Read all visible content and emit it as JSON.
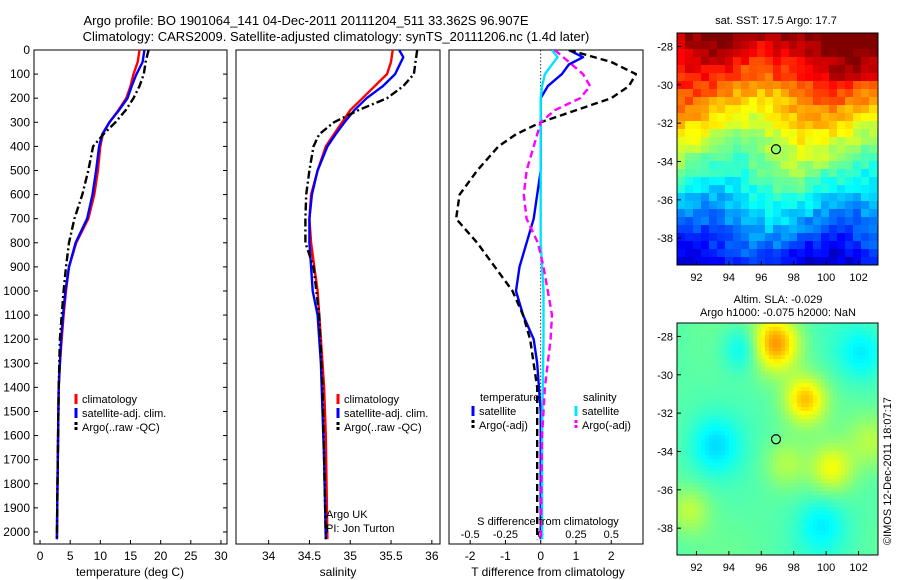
{
  "header": {
    "line1": "Argo profile: BO 1901064_141 04-Dec-2011 20111204_511 33.362S 96.907E",
    "line2": "Climatology: CARS2009. Satellite-adjusted climatology: synTS_20111206.nc (1.4d later)"
  },
  "colors": {
    "climatology": "#ff0000",
    "satellite": "#0000ff",
    "argo": "#000000",
    "satellite_salinity": "#00e5ff",
    "argo_salinity": "#ff00ff"
  },
  "depth_ticks": [
    "0",
    "100",
    "200",
    "300",
    "400",
    "500",
    "600",
    "700",
    "800",
    "900",
    "1000",
    "1100",
    "1200",
    "1300",
    "1400",
    "1500",
    "1600",
    "1700",
    "1800",
    "1900",
    "2000"
  ],
  "credit": [
    "Argo UK",
    "PI: Jon Turton"
  ],
  "watermark": "©IMOS 12-Dec-2011 18:07:17",
  "chart_data": [
    {
      "type": "line",
      "id": "temperature",
      "xlabel": "temperature (deg C)",
      "xlim": [
        -1,
        31
      ],
      "ylim": [
        2050,
        0
      ],
      "x_ticks": [
        "0",
        "5",
        "10",
        "15",
        "20",
        "25",
        "30"
      ],
      "legend": [
        "climatology",
        "satellite-adj. clim.",
        "Argo(..raw -QC)"
      ],
      "series": [
        {
          "name": "climatology",
          "style": "solid",
          "x": [
            16.5,
            16.2,
            15.5,
            15.0,
            14.3,
            13.0,
            11.5,
            10.4,
            10.0,
            9.6,
            9.0,
            8.0,
            6.0,
            4.8,
            4.3,
            3.9,
            3.6,
            3.3,
            3.1,
            3.0,
            2.9,
            2.8
          ],
          "y": [
            0,
            50,
            100,
            150,
            200,
            250,
            300,
            350,
            400,
            500,
            600,
            700,
            800,
            900,
            1000,
            1100,
            1200,
            1300,
            1400,
            1600,
            1800,
            2030
          ]
        },
        {
          "name": "satellite-adj. clim.",
          "style": "solid",
          "x": [
            17.3,
            17.0,
            16.0,
            15.2,
            14.5,
            13.1,
            11.5,
            10.3,
            9.8,
            9.3,
            8.7,
            7.8,
            5.9,
            4.8,
            4.2,
            3.8,
            3.5,
            3.3,
            3.1,
            3.0,
            2.9,
            2.8
          ],
          "y": [
            0,
            50,
            100,
            150,
            200,
            250,
            300,
            350,
            400,
            500,
            600,
            700,
            800,
            900,
            1000,
            1100,
            1200,
            1300,
            1400,
            1600,
            1800,
            2030
          ]
        },
        {
          "name": "Argo(..raw -QC)",
          "style": "dashdot",
          "x": [
            18.0,
            17.5,
            17.2,
            16.5,
            15.5,
            14.2,
            12.5,
            10.5,
            8.8,
            8.0,
            7.0,
            5.7,
            4.8,
            4.3,
            3.9,
            3.6,
            3.3,
            3.1,
            3.0,
            2.9,
            2.8
          ],
          "y": [
            0,
            50,
            100,
            150,
            200,
            250,
            300,
            350,
            400,
            500,
            600,
            700,
            800,
            900,
            1000,
            1100,
            1200,
            1400,
            1600,
            1800,
            2030
          ]
        }
      ]
    },
    {
      "type": "line",
      "id": "salinity",
      "xlabel": "salinity",
      "xlim": [
        33.6,
        36.1
      ],
      "ylim": [
        2050,
        0
      ],
      "x_ticks": [
        "34",
        "34.5",
        "35",
        "35.5",
        "36"
      ],
      "legend": [
        "climatology",
        "satellite-adj. clim.",
        "Argo(..raw -QC)"
      ],
      "series": [
        {
          "name": "climatology",
          "style": "solid",
          "x": [
            35.52,
            35.5,
            35.45,
            35.3,
            35.15,
            35.0,
            34.9,
            34.8,
            34.7,
            34.6,
            34.52,
            34.5,
            34.52,
            34.56,
            34.6,
            34.64,
            34.68,
            34.7,
            34.72
          ],
          "y": [
            0,
            50,
            100,
            150,
            200,
            250,
            300,
            350,
            400,
            500,
            600,
            700,
            800,
            900,
            1000,
            1200,
            1400,
            1600,
            2030
          ]
        },
        {
          "name": "satellite-adj. clim.",
          "style": "solid",
          "x": [
            35.6,
            35.65,
            35.55,
            35.4,
            35.2,
            35.05,
            34.93,
            34.82,
            34.72,
            34.6,
            34.53,
            34.5,
            34.5,
            34.52,
            34.54,
            34.6,
            34.64,
            34.66,
            34.68,
            34.7
          ],
          "y": [
            0,
            30,
            100,
            150,
            200,
            250,
            300,
            350,
            400,
            500,
            600,
            700,
            800,
            900,
            1000,
            1100,
            1300,
            1500,
            1700,
            2030
          ]
        },
        {
          "name": "Argo(..raw -QC)",
          "style": "dashdot",
          "x": [
            35.82,
            35.8,
            35.78,
            35.65,
            35.45,
            35.1,
            34.8,
            34.62,
            34.55,
            34.5,
            34.46,
            34.45,
            34.45,
            34.55,
            34.62,
            34.66,
            34.68,
            34.7
          ],
          "y": [
            0,
            50,
            100,
            150,
            200,
            250,
            300,
            350,
            400,
            500,
            600,
            700,
            800,
            900,
            1100,
            1400,
            1700,
            2030
          ]
        }
      ]
    },
    {
      "type": "line",
      "id": "difference",
      "xlabel": "T difference from climatology",
      "xlabel_top": "S difference from climatology",
      "xlim": [
        -2.6,
        2.9
      ],
      "ylim": [
        2050,
        0
      ],
      "x_ticks": [
        "-2",
        "-1",
        "0",
        "1",
        "2"
      ],
      "x_ticks_top": [
        "-0.5",
        "-0.25",
        "0",
        "0.25",
        "0.5"
      ],
      "legend_titles": [
        "temperature",
        "salinity"
      ],
      "legend": [
        "satellite",
        "Argo(-adj)",
        "satellite",
        "Argo(-adj)"
      ],
      "series": [
        {
          "name": "satellite",
          "quantity": "temperature",
          "style": "solid",
          "x": [
            0.8,
            1.2,
            0.8,
            0.6,
            0.2,
            0.0,
            0.0,
            0.0,
            0.0,
            -0.1,
            -0.2,
            -0.4,
            -0.6,
            -0.7,
            -0.5,
            -0.2,
            -0.1,
            0.0,
            0.0
          ],
          "y": [
            0,
            30,
            60,
            100,
            150,
            200,
            300,
            400,
            500,
            600,
            700,
            800,
            900,
            1000,
            1100,
            1200,
            1300,
            1500,
            2030
          ]
        },
        {
          "name": "Argo(-adj)",
          "quantity": "temperature",
          "style": "dashed",
          "x": [
            0.8,
            2.0,
            2.7,
            2.5,
            2.0,
            1.0,
            0.0,
            -0.7,
            -1.2,
            -1.8,
            -2.3,
            -2.4,
            -1.8,
            -1.3,
            -0.8,
            -0.5,
            -0.3,
            -0.1,
            -0.1,
            -0.1,
            -0.1
          ],
          "y": [
            0,
            50,
            100,
            150,
            200,
            250,
            300,
            350,
            400,
            500,
            600,
            700,
            800,
            900,
            1000,
            1100,
            1200,
            1400,
            1600,
            1800,
            2030
          ]
        },
        {
          "name": "satellite",
          "quantity": "salinity",
          "style": "solid",
          "x": [
            0.08,
            0.12,
            0.08,
            0.03,
            0.01,
            0.0,
            0.0,
            0.0,
            0.0,
            0.0,
            0.0,
            0.0,
            0.01,
            0.02,
            0.02,
            0.01,
            0.01
          ],
          "y": [
            0,
            30,
            60,
            100,
            150,
            200,
            300,
            400,
            500,
            600,
            700,
            800,
            900,
            1000,
            1200,
            1600,
            2030
          ]
        },
        {
          "name": "Argo(-adj)",
          "quantity": "salinity",
          "style": "dashed",
          "x": [
            0.1,
            0.2,
            0.3,
            0.35,
            0.28,
            0.1,
            0.0,
            -0.05,
            -0.1,
            -0.12,
            -0.1,
            -0.02,
            0.02,
            0.05,
            0.08,
            0.07,
            0.03,
            0.01,
            0.0
          ],
          "y": [
            0,
            50,
            100,
            150,
            200,
            250,
            300,
            400,
            500,
            600,
            700,
            800,
            900,
            1000,
            1100,
            1200,
            1400,
            1600,
            2030
          ]
        }
      ]
    },
    {
      "type": "heatmap",
      "id": "sst_map",
      "title": "sat. SST: 17.5 Argo: 17.7",
      "colormap": "jet",
      "xlim": [
        90.8,
        103.2
      ],
      "ylim": [
        -39.4,
        -27.3
      ],
      "x_ticks": [
        "92",
        "94",
        "96",
        "98",
        "100",
        "102"
      ],
      "y_ticks": [
        "-28",
        "-30",
        "-32",
        "-34",
        "-36",
        "-38"
      ],
      "marker": {
        "lon": 96.907,
        "lat": -33.362
      }
    },
    {
      "type": "heatmap",
      "id": "sla_map",
      "title_lines": [
        "Altim. SLA: -0.029",
        "Argo h1000: -0.075 h2000: NaN"
      ],
      "colormap": "jet",
      "xlim": [
        90.8,
        103.2
      ],
      "ylim": [
        -39.4,
        -27.3
      ],
      "x_ticks": [
        "92",
        "94",
        "96",
        "98",
        "100",
        "102"
      ],
      "y_ticks": [
        "-28",
        "-30",
        "-32",
        "-34",
        "-36",
        "-38"
      ],
      "marker": {
        "lon": 96.907,
        "lat": -33.362
      }
    }
  ]
}
